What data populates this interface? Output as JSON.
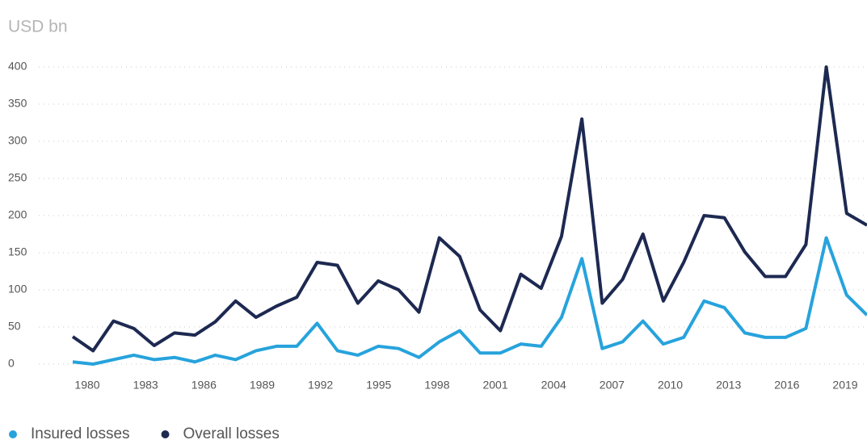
{
  "chart_data": {
    "type": "line",
    "subtitle": "USD bn",
    "categories": [
      "1980",
      null,
      null,
      "1983",
      null,
      null,
      "1986",
      null,
      null,
      "1989",
      null,
      null,
      "1992",
      null,
      null,
      "1995",
      null,
      null,
      "1998",
      null,
      null,
      "2001",
      null,
      null,
      "2004",
      null,
      null,
      "2007",
      null,
      null,
      "2010",
      null,
      null,
      "2013",
      null,
      null,
      "2016",
      null,
      null,
      "2019"
    ],
    "series": [
      {
        "name": "Insured losses",
        "color": "#27a3dc",
        "values": [
          3,
          0,
          6,
          12,
          6,
          9,
          3,
          12,
          6,
          18,
          24,
          24,
          55,
          18,
          12,
          24,
          21,
          9,
          30,
          45,
          15,
          15,
          27,
          24,
          63,
          142,
          21,
          30,
          58,
          27,
          36,
          85,
          76,
          42,
          36,
          36,
          48,
          170,
          93,
          66
        ]
      },
      {
        "name": "Overall losses",
        "color": "#1d2951",
        "values": [
          37,
          18,
          58,
          48,
          25,
          42,
          39,
          57,
          85,
          63,
          78,
          90,
          137,
          133,
          82,
          112,
          100,
          70,
          170,
          145,
          73,
          45,
          121,
          102,
          172,
          330,
          82,
          114,
          175,
          85,
          137,
          200,
          197,
          151,
          118,
          118,
          161,
          400,
          203,
          187
        ]
      }
    ],
    "ylim": [
      0,
      400
    ],
    "yticks": [
      0,
      50,
      100,
      150,
      200,
      250,
      300,
      350,
      400
    ],
    "grid": true,
    "legend": "bottom-left"
  }
}
